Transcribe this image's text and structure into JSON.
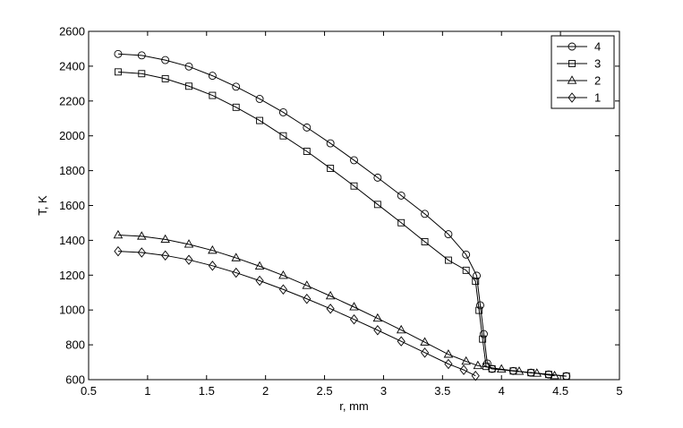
{
  "chart_data": {
    "type": "line",
    "title": "",
    "xlabel": "r, mm",
    "ylabel": "T, K",
    "xlim": [
      0.5,
      5
    ],
    "ylim": [
      600,
      2600
    ],
    "xticks": [
      "0.5",
      "1",
      "1.5",
      "2",
      "2.5",
      "3",
      "3.5",
      "4",
      "4.5",
      "5"
    ],
    "yticks": [
      "600",
      "800",
      "1000",
      "1200",
      "1400",
      "1600",
      "1800",
      "2000",
      "2200",
      "2400",
      "2600"
    ],
    "grid": false,
    "legend_position": "top-right",
    "series": [
      {
        "name": "4",
        "marker": "circle",
        "points": [
          [
            0.75,
            2470
          ],
          [
            0.95,
            2462
          ],
          [
            1.15,
            2435
          ],
          [
            1.35,
            2398
          ],
          [
            1.55,
            2345
          ],
          [
            1.75,
            2282
          ],
          [
            1.95,
            2212
          ],
          [
            2.15,
            2135
          ],
          [
            2.35,
            2048
          ],
          [
            2.55,
            1957
          ],
          [
            2.75,
            1860
          ],
          [
            2.95,
            1760
          ],
          [
            3.15,
            1657
          ],
          [
            3.35,
            1552
          ],
          [
            3.55,
            1435
          ],
          [
            3.7,
            1318
          ],
          [
            3.79,
            1197
          ],
          [
            3.82,
            1027
          ],
          [
            3.85,
            862
          ],
          [
            3.88,
            693
          ],
          [
            3.92,
            662
          ],
          [
            4.1,
            650
          ],
          [
            4.25,
            640
          ],
          [
            4.4,
            630
          ],
          [
            4.55,
            620
          ]
        ]
      },
      {
        "name": "3",
        "marker": "square",
        "points": [
          [
            0.75,
            2367
          ],
          [
            0.95,
            2357
          ],
          [
            1.15,
            2328
          ],
          [
            1.35,
            2285
          ],
          [
            1.55,
            2232
          ],
          [
            1.75,
            2164
          ],
          [
            1.95,
            2088
          ],
          [
            2.15,
            2000
          ],
          [
            2.35,
            1911
          ],
          [
            2.55,
            1813
          ],
          [
            2.75,
            1712
          ],
          [
            2.95,
            1606
          ],
          [
            3.15,
            1501
          ],
          [
            3.35,
            1392
          ],
          [
            3.55,
            1286
          ],
          [
            3.7,
            1228
          ],
          [
            3.78,
            1165
          ],
          [
            3.81,
            998
          ],
          [
            3.84,
            833
          ],
          [
            3.87,
            676
          ],
          [
            3.92,
            662
          ],
          [
            4.1,
            650
          ],
          [
            4.25,
            640
          ],
          [
            4.4,
            630
          ],
          [
            4.55,
            620
          ]
        ]
      },
      {
        "name": "2",
        "marker": "triangle",
        "points": [
          [
            0.75,
            1430
          ],
          [
            0.95,
            1423
          ],
          [
            1.15,
            1405
          ],
          [
            1.35,
            1377
          ],
          [
            1.55,
            1342
          ],
          [
            1.75,
            1299
          ],
          [
            1.95,
            1251
          ],
          [
            2.15,
            1198
          ],
          [
            2.35,
            1140
          ],
          [
            2.55,
            1080
          ],
          [
            2.75,
            1017
          ],
          [
            2.95,
            952
          ],
          [
            3.15,
            885
          ],
          [
            3.35,
            815
          ],
          [
            3.55,
            745
          ],
          [
            3.7,
            705
          ],
          [
            3.8,
            680
          ],
          [
            4.0,
            660
          ],
          [
            4.15,
            647
          ],
          [
            4.3,
            636
          ],
          [
            4.45,
            622
          ]
        ]
      },
      {
        "name": "1",
        "marker": "diamond",
        "points": [
          [
            0.75,
            1337
          ],
          [
            0.95,
            1330
          ],
          [
            1.15,
            1313
          ],
          [
            1.35,
            1288
          ],
          [
            1.55,
            1254
          ],
          [
            1.75,
            1214
          ],
          [
            1.95,
            1168
          ],
          [
            2.15,
            1118
          ],
          [
            2.35,
            1064
          ],
          [
            2.55,
            1007
          ],
          [
            2.75,
            946
          ],
          [
            2.95,
            884
          ],
          [
            3.15,
            820
          ],
          [
            3.35,
            755
          ],
          [
            3.55,
            690
          ],
          [
            3.68,
            656
          ],
          [
            3.78,
            622
          ]
        ]
      }
    ]
  }
}
